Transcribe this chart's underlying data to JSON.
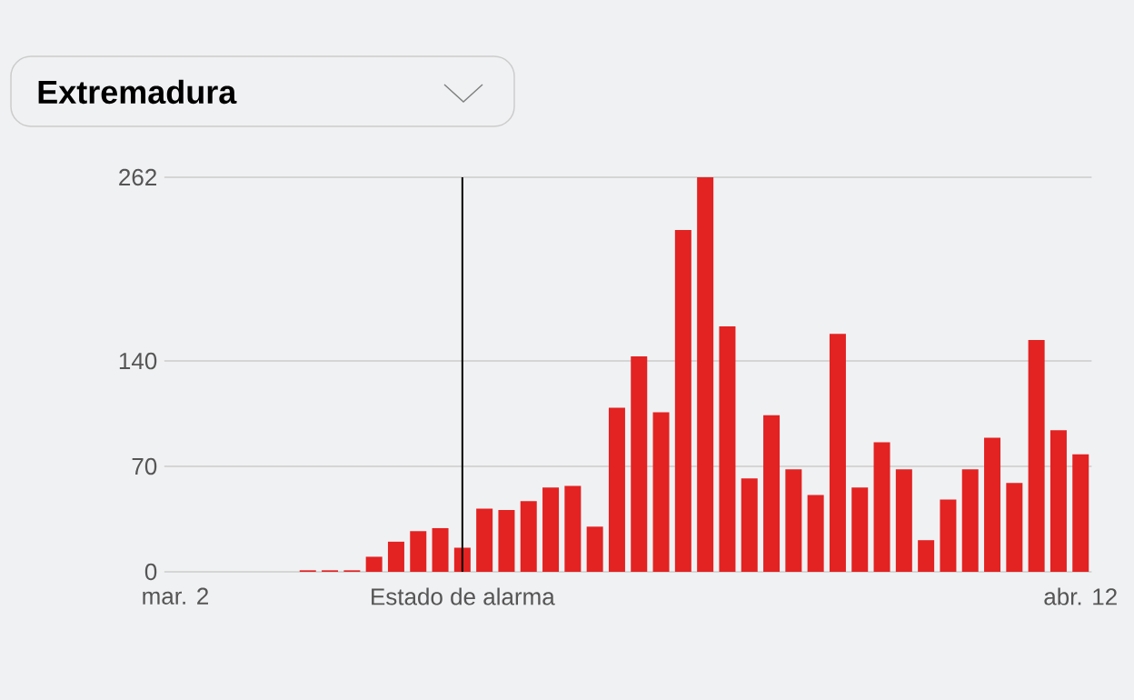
{
  "chart_data": {
    "type": "bar",
    "title": "Extremadura",
    "categories": [
      "mar. 2",
      null,
      null,
      null,
      null,
      null,
      null,
      null,
      null,
      null,
      null,
      null,
      null,
      "Estado de alarma",
      null,
      null,
      null,
      null,
      null,
      null,
      null,
      null,
      null,
      null,
      null,
      null,
      null,
      null,
      null,
      null,
      null,
      null,
      null,
      null,
      null,
      null,
      null,
      null,
      null,
      null,
      null,
      "abr. 12"
    ],
    "values": [
      null,
      null,
      null,
      null,
      null,
      null,
      1,
      1,
      1,
      10,
      20,
      27,
      29,
      16,
      42,
      41,
      47,
      56,
      57,
      30,
      109,
      143,
      106,
      227,
      262,
      163,
      62,
      104,
      68,
      51,
      158,
      56,
      86,
      68,
      21,
      48,
      68,
      89,
      59,
      154,
      94,
      78
    ],
    "color": "#e32222",
    "ylim": [
      0,
      262
    ],
    "yticks": [
      0,
      70,
      140,
      262
    ],
    "grid": "y",
    "ref_lines": [
      {
        "axis": "x",
        "value": "Estado de alarma",
        "color": "#000000"
      }
    ]
  }
}
